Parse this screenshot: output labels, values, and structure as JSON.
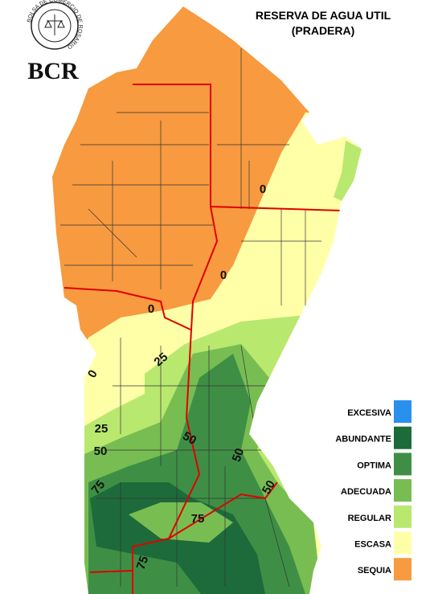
{
  "header": {
    "logo_ring": "BOLSA DE COMERCIO DE ROSARIO",
    "logo": "BCR",
    "title": [
      "RESERVA DE AGUA UTIL",
      "(PRADERA)"
    ]
  },
  "legend": [
    {
      "label": "EXCESIVA",
      "color": "#2a90ee"
    },
    {
      "label": "ABUNDANTE",
      "color": "#1d6b3a"
    },
    {
      "label": "OPTIMA",
      "color": "#3e8f45"
    },
    {
      "label": "ADECUADA",
      "color": "#78bd52"
    },
    {
      "label": "REGULAR",
      "color": "#b9e86f"
    },
    {
      "label": "ESCASA",
      "color": "#ffffa8"
    },
    {
      "label": "SEQUIA",
      "color": "#f79a40"
    }
  ],
  "contours": [
    0,
    0,
    0,
    0,
    25,
    25,
    50,
    50,
    50,
    50,
    75,
    75,
    75
  ]
}
